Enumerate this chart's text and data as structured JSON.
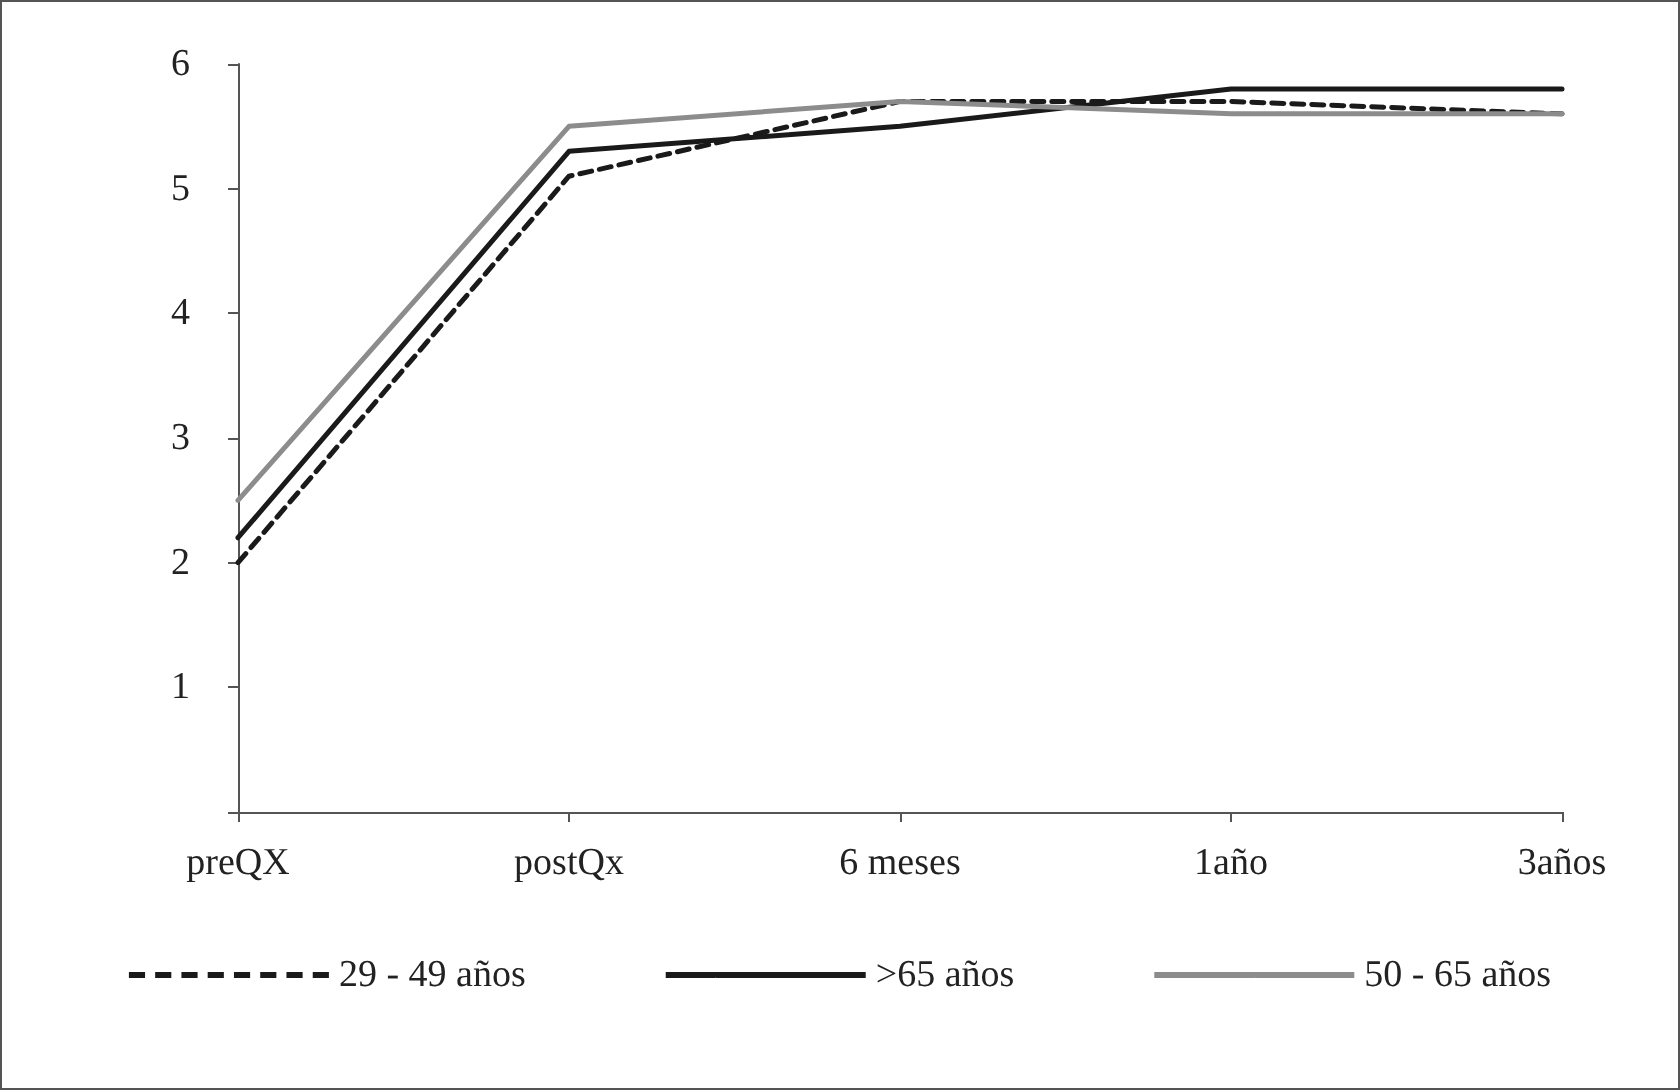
{
  "chart_data": {
    "type": "line",
    "categories": [
      "preQX",
      "postQx",
      "6 meses",
      "1año",
      "3años"
    ],
    "series": [
      {
        "name": "29 - 49 años",
        "color": "#1a1a1a",
        "line_style": "dashed",
        "values": [
          2.0,
          5.1,
          5.7,
          5.7,
          5.6
        ]
      },
      {
        "name": ">65 años",
        "color": "#1a1a1a",
        "line_style": "solid",
        "values": [
          2.2,
          5.3,
          5.5,
          5.8,
          5.8
        ]
      },
      {
        "name": "50 - 65 años",
        "color": "#8c8c8c",
        "line_style": "solid",
        "values": [
          2.5,
          5.5,
          5.7,
          5.6,
          5.6
        ]
      }
    ],
    "ylim": [
      0,
      6
    ],
    "yticks": [
      {
        "value": 0,
        "label": null
      },
      1,
      2,
      3,
      4,
      5,
      6
    ],
    "grid": false,
    "legend": "bottom",
    "marker": "none"
  }
}
